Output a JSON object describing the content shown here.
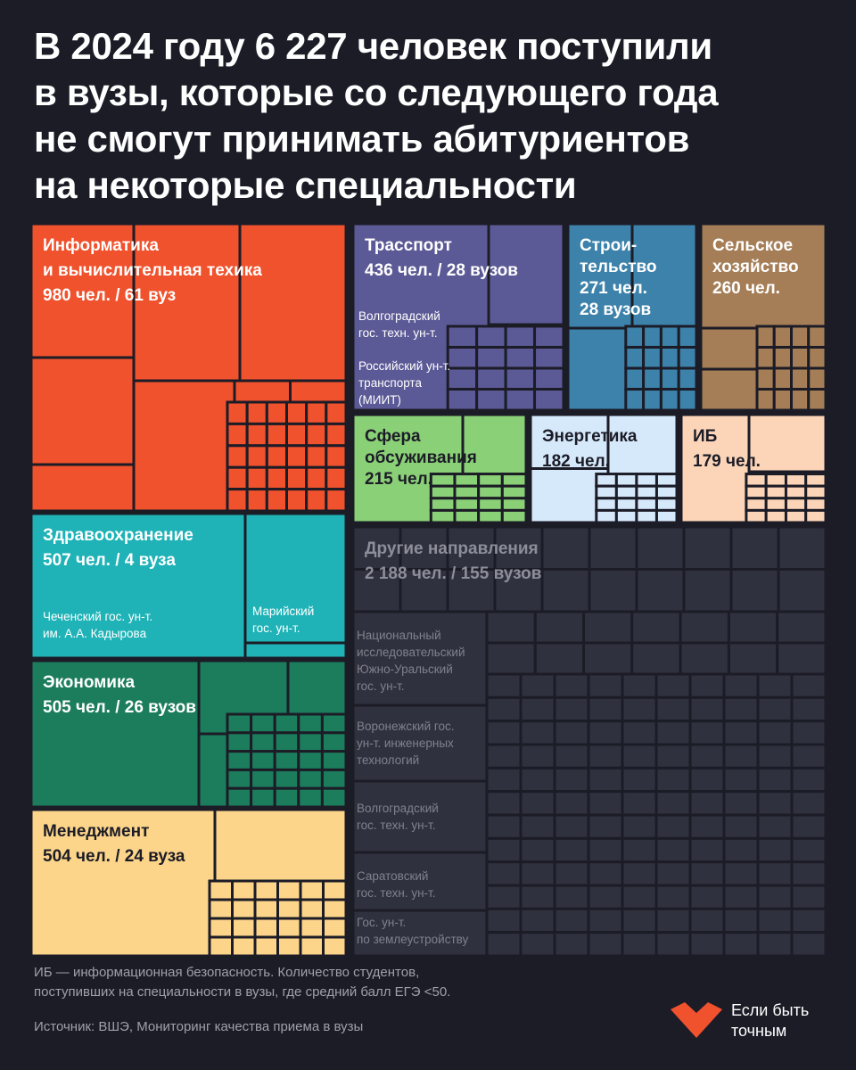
{
  "title": {
    "lines": [
      "В 2024 году 6 227 человек поступили",
      "в вузы, которые со следующего года",
      "не смогут принимать абитуриентов",
      "на некоторые специальности"
    ]
  },
  "chart_data": {
    "type": "treemap",
    "unit": "чел.",
    "total": 6227,
    "categories": [
      {
        "name": "Информатика и вычислительная техика",
        "students": 980,
        "universities": 61,
        "label_lines": [
          "Информатика",
          "и вычислительная техика",
          "980 чел. / 61 вуз"
        ],
        "color": "#f0522d",
        "sub_labels": []
      },
      {
        "name": "Здравоохранение",
        "students": 507,
        "universities": 4,
        "label_lines": [
          "Здравоохранение",
          "507 чел. / 4 вуза"
        ],
        "color": "#1fb3b7",
        "sub_labels": [
          {
            "text": [
              "Чеченский гос. ун-т.",
              "им. А.А. Кадырова"
            ]
          },
          {
            "text": [
              "Марийский",
              "гос. ун-т."
            ]
          }
        ]
      },
      {
        "name": "Экономика",
        "students": 505,
        "universities": 26,
        "label_lines": [
          "Экономика",
          "505 чел. / 26 вузов"
        ],
        "color": "#1c7d5d",
        "sub_labels": []
      },
      {
        "name": "Менеджмент",
        "students": 504,
        "universities": 24,
        "label_lines": [
          "Менеджмент",
          "504 чел. / 24 вуза"
        ],
        "color": "#fcd58a",
        "sub_labels": []
      },
      {
        "name": "Трасспорт",
        "students": 436,
        "universities": 28,
        "label_lines": [
          "Трасспорт",
          "436 чел. / 28 вузов"
        ],
        "color": "#5c5a96",
        "sub_labels": [
          {
            "text": [
              "Волгоградский",
              "гос. техн. ун-т."
            ]
          },
          {
            "text": [
              "Российский ун-т.",
              "транспорта",
              "(МИИТ)"
            ]
          }
        ]
      },
      {
        "name": "Строительство",
        "students": 271,
        "universities": 28,
        "label_lines": [
          "Строи-",
          "тельство",
          "271 чел.",
          "28 вузов"
        ],
        "color": "#3d82ab",
        "sub_labels": []
      },
      {
        "name": "Сельское хозяйство",
        "students": 260,
        "universities": null,
        "label_lines": [
          "Сельское",
          "хозяйство",
          "260 чел."
        ],
        "color": "#a57e57",
        "sub_labels": []
      },
      {
        "name": "Сфера обсуживания",
        "students": 215,
        "universities": null,
        "label_lines": [
          "Сфера",
          "обсуживания",
          "215 чел."
        ],
        "color": "#8ad077",
        "sub_labels": []
      },
      {
        "name": "Энергетика",
        "students": 182,
        "universities": null,
        "label_lines": [
          "Энергетика",
          "182 чел."
        ],
        "color": "#d6e9fb",
        "sub_labels": []
      },
      {
        "name": "ИБ",
        "students": 179,
        "universities": null,
        "label_lines": [
          "ИБ",
          "179 чел."
        ],
        "color": "#fcd5b8",
        "sub_labels": []
      },
      {
        "name": "Другие направления",
        "students": 2188,
        "universities": 155,
        "label_lines": [
          "Другие направления",
          "2 188 чел. / 155 вузов"
        ],
        "color": "#30313f",
        "sub_labels": [
          {
            "text": [
              "Национальный",
              "исследовательский",
              "Южно-Уральский",
              "гос. ун-т."
            ]
          },
          {
            "text": [
              "Воронежский гос.",
              "ун-т. инженерных",
              "технологий"
            ]
          },
          {
            "text": [
              "Волгоградский",
              "гос. техн. ун-т."
            ]
          },
          {
            "text": [
              "Саратовский",
              "гос. техн. ун-т."
            ]
          },
          {
            "text": [
              "Гос. ун-т.",
              "по землеустройству"
            ]
          }
        ]
      }
    ]
  },
  "footnote": {
    "lines": [
      "ИБ — информационная безопасность. Количество студентов,",
      "поступивших на специальности в вузы, где средний балл ЕГЭ <50."
    ]
  },
  "source": "Источник: ВШЭ, Мониторинг качества приема в вузы",
  "brand": {
    "lines": [
      "Если быть",
      "точным"
    ],
    "logo_color": "#f0522d"
  }
}
